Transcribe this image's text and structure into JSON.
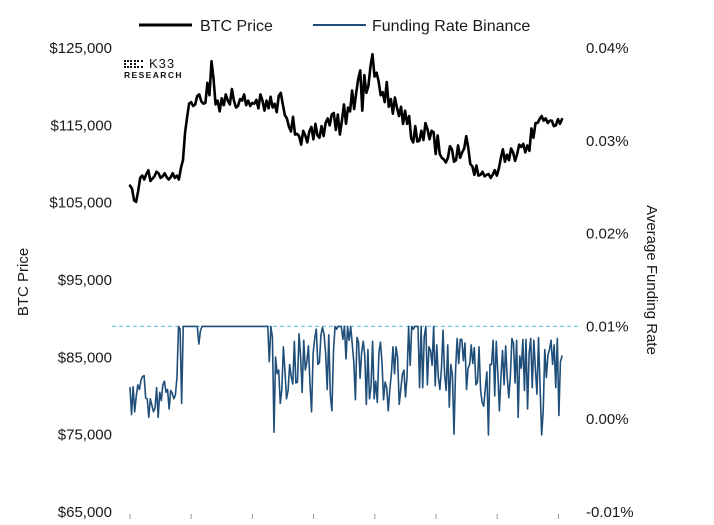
{
  "chart_data": {
    "type": "line",
    "title": "",
    "legend": {
      "position": "top",
      "entries": [
        {
          "name": "BTC Price",
          "color": "#000000"
        },
        {
          "name": "Funding Rate Binance",
          "color": "#1f4e79"
        }
      ]
    },
    "logo": {
      "line1": "K33",
      "line2": "RESEARCH"
    },
    "left_axis": {
      "label": "BTC Price",
      "ylim": [
        65000,
        125000
      ],
      "tick_labels": [
        "$125,000",
        "$115,000",
        "$105,000",
        "$95,000",
        "$85,000",
        "$75,000",
        "$65,000"
      ],
      "ticks": [
        125000,
        115000,
        105000,
        95000,
        85000,
        75000,
        65000
      ]
    },
    "right_axis": {
      "label": "Average Funding Rate",
      "ylim": [
        -0.01,
        0.04
      ],
      "tick_labels": [
        "0.04%",
        "0.03%",
        "0.02%",
        "0.01%",
        "0.00%",
        "-0.01%"
      ],
      "ticks": [
        0.04,
        0.03,
        0.02,
        0.01,
        0.0,
        -0.01
      ]
    },
    "reference_line": {
      "axis": "right",
      "value": 0.01,
      "style": "dashed",
      "color": "#7ec8e3"
    },
    "x_tick_count": 8,
    "series": [
      {
        "name": "BTC Price",
        "axis": "left",
        "color": "#000000",
        "values": [
          107200,
          106800,
          105300,
          105100,
          106500,
          108200,
          108500,
          108000,
          108700,
          109200,
          107800,
          108100,
          108400,
          109000,
          108800,
          108200,
          108400,
          108800,
          108300,
          108000,
          108300,
          108800,
          108200,
          108500,
          108000,
          109500,
          110500,
          114000,
          116000,
          117800,
          118000,
          117500,
          117700,
          118800,
          119000,
          118100,
          117800,
          117900,
          120500,
          118900,
          123300,
          121000,
          117700,
          118200,
          116800,
          118500,
          117600,
          119000,
          118200,
          117700,
          119700,
          118200,
          117300,
          117500,
          118400,
          118200,
          119000,
          117600,
          118200,
          117500,
          117900,
          117800,
          118300,
          117200,
          119000,
          118200,
          116900,
          118200,
          117200,
          118700,
          117300,
          117800,
          116700,
          118800,
          119200,
          117700,
          116300,
          115900,
          114800,
          114200,
          116100,
          113800,
          113900,
          113600,
          112500,
          114300,
          113700,
          112800,
          114200,
          114800,
          113200,
          115200,
          113700,
          113400,
          114900,
          113600,
          115300,
          115900,
          115000,
          116400,
          116600,
          114400,
          116400,
          113800,
          115600,
          117700,
          115200,
          117300,
          116800,
          119500,
          117100,
          119200,
          121000,
          122100,
          116900,
          121500,
          119200,
          120100,
          122600,
          124200,
          121300,
          121800,
          120700,
          118900,
          119300,
          118000,
          120600,
          117400,
          118400,
          116500,
          118600,
          117300,
          116200,
          117400,
          115200,
          116900,
          115200,
          116200,
          113300,
          112800,
          114900,
          112900,
          113000,
          114300,
          113100,
          115300,
          114500,
          113200,
          114300,
          114100,
          111300,
          113700,
          111300,
          110800,
          110600,
          110200,
          110800,
          112300,
          111900,
          110300,
          110500,
          112400,
          110800,
          111500,
          112000,
          113600,
          112100,
          110000,
          109700,
          108600,
          109800,
          108500,
          108600,
          109000,
          108400,
          108600,
          108700,
          108200,
          108600,
          109200,
          108500,
          109400,
          110800,
          111900,
          110300,
          111200,
          110500,
          112000,
          111500,
          110400,
          111300,
          112500,
          112200,
          112600,
          111500,
          112400,
          111700,
          114600,
          113400,
          115300,
          115300,
          115800,
          116200,
          115600,
          115900,
          115300,
          115600,
          115600,
          114900,
          115000,
          115800,
          115200,
          115800
        ]
      },
      {
        "name": "Funding Rate Binance",
        "axis": "right",
        "color": "#1f4e79",
        "values": [
          0.0034,
          0.0005,
          0.0035,
          0.0008,
          0.0025,
          0.0037,
          0.0032,
          0.0042,
          0.0046,
          0.0047,
          0.0023,
          0.0022,
          0.0002,
          0.0022,
          0.0015,
          0.0008,
          0.0012,
          0.0034,
          0.0002,
          0.0029,
          0.002,
          0.0037,
          0.0041,
          0.0029,
          0.0032,
          0.0011,
          0.0031,
          0.0028,
          0.0022,
          0.0026,
          0.0045,
          0.01,
          0.0097,
          0.0017,
          0.01,
          0.01,
          0.01,
          0.01,
          0.01,
          0.01,
          0.01,
          0.01,
          0.01,
          0.01,
          0.0081,
          0.0095,
          0.01,
          0.01,
          0.01,
          0.01,
          0.01,
          0.01,
          0.01,
          0.01,
          0.01,
          0.01,
          0.01,
          0.01,
          0.01,
          0.01,
          0.01,
          0.01,
          0.01,
          0.01,
          0.01,
          0.01,
          0.01,
          0.01,
          0.01,
          0.01,
          0.01,
          0.01,
          0.01,
          0.01,
          0.01,
          0.01,
          0.01,
          0.01,
          0.01,
          0.01,
          0.01,
          0.01,
          0.01,
          0.01,
          0.01,
          0.01,
          0.01,
          0.01,
          0.01,
          0.0062,
          0.01,
          0.0088,
          -0.0014,
          0.0067,
          0.0049,
          0.0053,
          0.0017,
          0.0032,
          0.0078,
          0.0052,
          0.0022,
          0.0031,
          0.0059,
          0.0046,
          0.0038,
          0.0084,
          0.0039,
          0.004,
          0.0092,
          0.0067,
          0.0029,
          0.0085,
          0.0053,
          0.0062,
          0.0079,
          0.0038,
          0.0008,
          0.0071,
          0.0087,
          0.0097,
          0.0059,
          0.0061,
          0.0091,
          0.0099,
          0.0091,
          0.0071,
          0.0032,
          0.0091,
          0.0026,
          0.0009,
          0.0073,
          0.01,
          0.0097,
          0.01,
          0.01,
          0.01,
          0.0086,
          0.01,
          0.0065,
          0.01,
          0.0085,
          0.01,
          0.0081,
          0.0061,
          0.0021,
          0.0088,
          0.0083,
          0.0044,
          0.0072,
          0.0084,
          0.0069,
          0.0016,
          0.0075,
          0.0022,
          0.0035,
          0.0084,
          0.0022,
          0.0041,
          0.0018,
          0.0071,
          0.0083,
          0.0061,
          0.0021,
          0.004,
          0.0034,
          0.0009,
          0.0032,
          0.0049,
          0.0078,
          0.0049,
          0.0078,
          0.0066,
          0.0016,
          0.0032,
          0.0048,
          0.0053,
          0.0024,
          0.0046,
          0.01,
          0.0058,
          0.01,
          0.0097,
          0.01,
          0.01,
          0.01,
          0.0034,
          0.01,
          0.0034,
          0.0089,
          0.01,
          0.0037,
          0.0078,
          0.0074,
          0.0058,
          0.01,
          0.0036,
          0.008,
          0.0045,
          0.0032,
          0.0055,
          0.0096,
          0.0048,
          0.0031,
          0.008,
          0.0013,
          0.0059,
          0.0047,
          -0.0016,
          0.0053,
          0.0087,
          0.006,
          0.0086,
          0.0086,
          0.0063,
          0.0082,
          0.0032,
          0.0055,
          0.0059,
          0.008,
          0.006,
          0.0077,
          0.0037,
          0.004,
          0.0078,
          0.0031,
          0.0018,
          0.0014,
          0.0033,
          0.0051,
          -0.0017,
          0.0059,
          0.0059,
          0.0085,
          0.0025,
          0.0084,
          0.005,
          0.0009,
          0.0046,
          0.0074,
          0.0037,
          0.0079,
          0.0045,
          0.0023,
          0.0046,
          0.0087,
          0.0082,
          0.0039,
          0.0085,
          0.0002,
          0.0068,
          0.0055,
          0.0086,
          0.0031,
          0.0086,
          0.0011,
          0.0071,
          0.0087,
          0.0034,
          0.0085,
          0.0054,
          0.0027,
          0.0088,
          0.0034,
          -0.0017,
          0.0009,
          0.0075,
          0.0045,
          0.0069,
          0.0075,
          0.0085,
          0.0059,
          0.008,
          0.0034,
          0.0087,
          0.0004,
          0.0062,
          0.0068
        ]
      }
    ]
  }
}
